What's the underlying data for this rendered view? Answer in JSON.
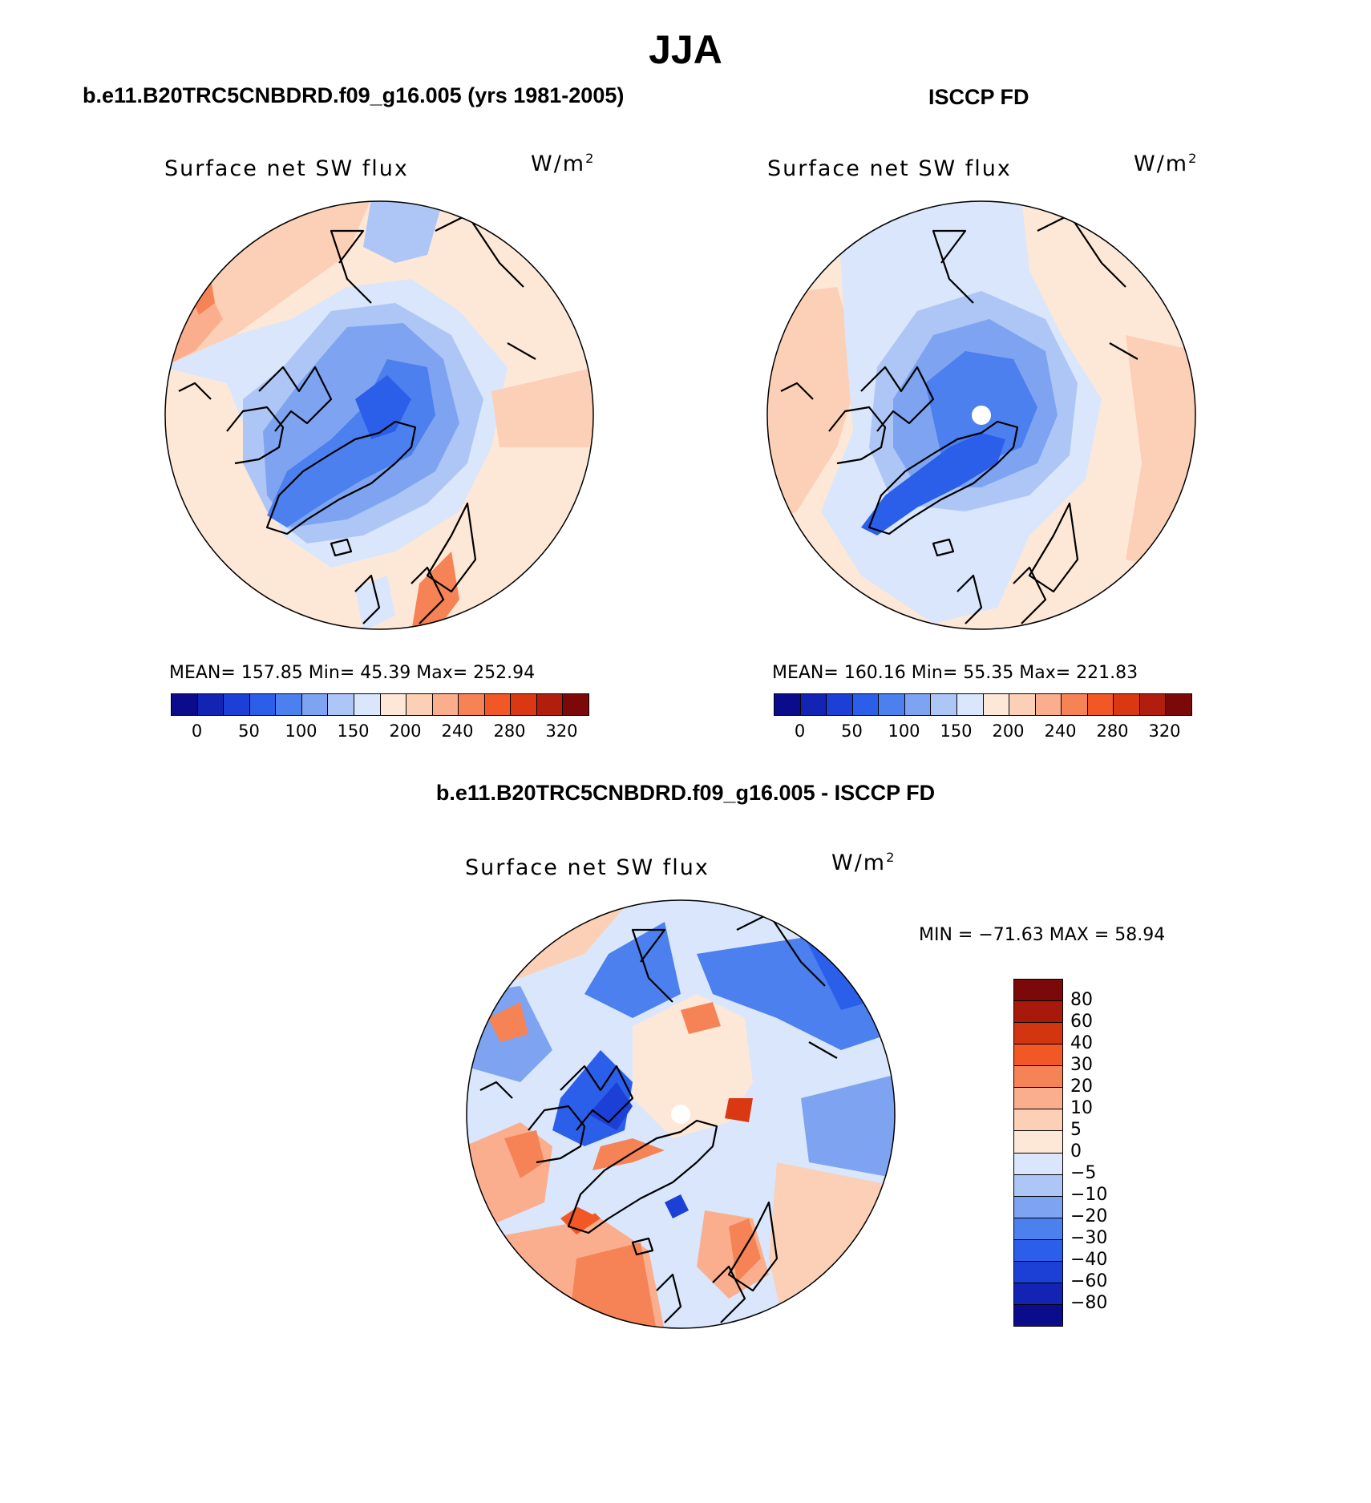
{
  "figure": {
    "title": "JJA",
    "panel_left_title": "b.e11.B20TRC5CNBDRD.f09_g16.005 (yrs 1981-2005)",
    "panel_right_title": "ISCCP FD",
    "panel_bottom_title": "b.e11.B20TRC5CNBDRD.f09_g16.005 - ISCCP FD"
  },
  "panels": {
    "model": {
      "variable": "Surface net SW flux",
      "units_base": "W/m",
      "units_exp": "2",
      "stats": "MEAN= 157.85   Min=   45.39   Max= 252.94"
    },
    "obs": {
      "variable": "Surface net SW flux",
      "units_base": "W/m",
      "units_exp": "2",
      "stats": "MEAN= 160.16   Min=   55.35   Max= 221.83"
    },
    "diff": {
      "variable": "Surface net SW flux",
      "units_base": "W/m",
      "units_exp": "2",
      "stats": "MIN = −71.63 MAX =   58.94"
    }
  },
  "colorbars": {
    "abs_colors": [
      "#0b0c8c",
      "#1323b4",
      "#1c3fd6",
      "#2b5fea",
      "#4c80ef",
      "#7ea4f1",
      "#adc6f5",
      "#d9e6fb",
      "#fde8d8",
      "#fcd0b6",
      "#fbae8d",
      "#f68356",
      "#f25726",
      "#d93812",
      "#b11e0d",
      "#7c0909"
    ],
    "abs_ticks": [
      "0",
      "50",
      "100",
      "150",
      "200",
      "240",
      "280",
      "320"
    ],
    "diff_colors": [
      "#7c0909",
      "#a8190c",
      "#d33510",
      "#f25726",
      "#f68356",
      "#fbae8d",
      "#fcd0b6",
      "#fde8d8",
      "#d9e6fb",
      "#adc6f5",
      "#7ea4f1",
      "#4c80ef",
      "#2b5fea",
      "#1c3fd6",
      "#1323b4",
      "#0b0c8c"
    ],
    "diff_ticks": [
      "80",
      "60",
      "40",
      "30",
      "20",
      "10",
      "5",
      "0",
      "−5",
      "−10",
      "−20",
      "−30",
      "−40",
      "−60",
      "−80"
    ]
  },
  "chart_data": [
    {
      "type": "heatmap",
      "title": "b.e11.B20TRC5CNBDRD.f09_g16.005 (yrs 1981-2005)",
      "variable": "Surface net SW flux",
      "units": "W/m^2",
      "projection": "north polar stereographic",
      "summary": {
        "mean": 157.85,
        "min": 45.39,
        "max": 252.94
      },
      "contour_levels": [
        0,
        25,
        50,
        75,
        100,
        125,
        150,
        175,
        200,
        220,
        240,
        260,
        280,
        300,
        320
      ]
    },
    {
      "type": "heatmap",
      "title": "ISCCP FD",
      "variable": "Surface net SW flux",
      "units": "W/m^2",
      "projection": "north polar stereographic",
      "summary": {
        "mean": 160.16,
        "min": 55.35,
        "max": 221.83
      },
      "contour_levels": [
        0,
        25,
        50,
        75,
        100,
        125,
        150,
        175,
        200,
        220,
        240,
        260,
        280,
        300,
        320
      ]
    },
    {
      "type": "heatmap",
      "title": "b.e11.B20TRC5CNBDRD.f09_g16.005 - ISCCP FD",
      "variable": "Surface net SW flux",
      "units": "W/m^2",
      "projection": "north polar stereographic",
      "summary": {
        "min": -71.63,
        "max": 58.94
      },
      "contour_levels": [
        -80,
        -60,
        -40,
        -30,
        -20,
        -10,
        -5,
        0,
        5,
        10,
        20,
        30,
        40,
        60,
        80
      ]
    }
  ]
}
